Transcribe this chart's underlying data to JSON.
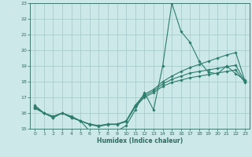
{
  "title": "",
  "xlabel": "Humidex (Indice chaleur)",
  "bg_color": "#cce8e8",
  "grid_color": "#aacccc",
  "line_color": "#2e7d6e",
  "xlim": [
    -0.5,
    23.5
  ],
  "ylim": [
    15,
    23
  ],
  "xticks": [
    0,
    1,
    2,
    3,
    4,
    5,
    6,
    7,
    8,
    9,
    10,
    11,
    12,
    13,
    14,
    15,
    16,
    17,
    18,
    19,
    20,
    21,
    22,
    23
  ],
  "yticks": [
    15,
    16,
    17,
    18,
    19,
    20,
    21,
    22,
    23
  ],
  "s1_x": [
    0,
    1,
    2,
    3,
    4,
    5,
    6,
    7,
    8,
    9,
    10,
    11,
    12,
    13,
    14,
    15,
    16,
    17,
    18,
    19,
    20,
    21,
    22,
    23
  ],
  "s1_y": [
    16.5,
    16.0,
    15.8,
    16.0,
    15.8,
    15.5,
    14.85,
    14.4,
    14.85,
    14.85,
    15.2,
    16.2,
    17.3,
    16.2,
    19.0,
    23.0,
    21.2,
    20.5,
    19.3,
    18.6,
    18.5,
    19.0,
    18.5,
    18.1
  ],
  "s2_x": [
    0,
    1,
    2,
    3,
    4,
    5,
    6,
    7,
    8,
    9,
    10,
    11,
    12,
    13,
    14,
    15,
    16,
    17,
    18,
    19,
    20,
    21,
    22,
    23
  ],
  "s2_y": [
    16.4,
    16.0,
    15.75,
    16.0,
    15.75,
    15.5,
    15.3,
    15.2,
    15.3,
    15.3,
    15.5,
    16.5,
    17.2,
    17.5,
    18.0,
    18.35,
    18.65,
    18.9,
    19.1,
    19.3,
    19.5,
    19.7,
    19.85,
    18.05
  ],
  "s3_x": [
    0,
    1,
    2,
    3,
    4,
    5,
    6,
    7,
    8,
    9,
    10,
    11,
    12,
    13,
    14,
    15,
    16,
    17,
    18,
    19,
    20,
    21,
    22,
    23
  ],
  "s3_y": [
    16.35,
    16.0,
    15.72,
    16.0,
    15.72,
    15.5,
    15.28,
    15.18,
    15.28,
    15.28,
    15.48,
    16.45,
    17.1,
    17.4,
    17.85,
    18.15,
    18.35,
    18.55,
    18.65,
    18.75,
    18.85,
    18.95,
    19.05,
    18.0
  ],
  "s4_x": [
    0,
    1,
    2,
    3,
    4,
    5,
    6,
    7,
    8,
    9,
    10,
    11,
    12,
    13,
    14,
    15,
    16,
    17,
    18,
    19,
    20,
    21,
    22,
    23
  ],
  "s4_y": [
    16.3,
    16.0,
    15.7,
    16.0,
    15.7,
    15.5,
    15.27,
    15.15,
    15.27,
    15.27,
    15.45,
    16.4,
    17.0,
    17.3,
    17.7,
    17.95,
    18.1,
    18.25,
    18.35,
    18.45,
    18.55,
    18.65,
    18.75,
    17.95
  ]
}
